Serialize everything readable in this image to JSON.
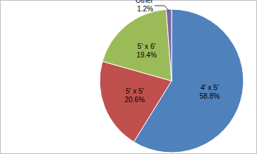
{
  "chart_data": {
    "type": "pie",
    "categories": [
      "4' x 5'",
      "5' x 5'",
      "5' x 6'",
      "Other"
    ],
    "values": [
      58.8,
      20.6,
      19.4,
      1.2
    ],
    "value_labels": [
      "58.8%",
      "20.6%",
      "19.4%",
      "1.2%"
    ],
    "colors": [
      "#4f81bd",
      "#c0504d",
      "#9bbb59",
      "#8064a2"
    ],
    "data_labels": true
  }
}
